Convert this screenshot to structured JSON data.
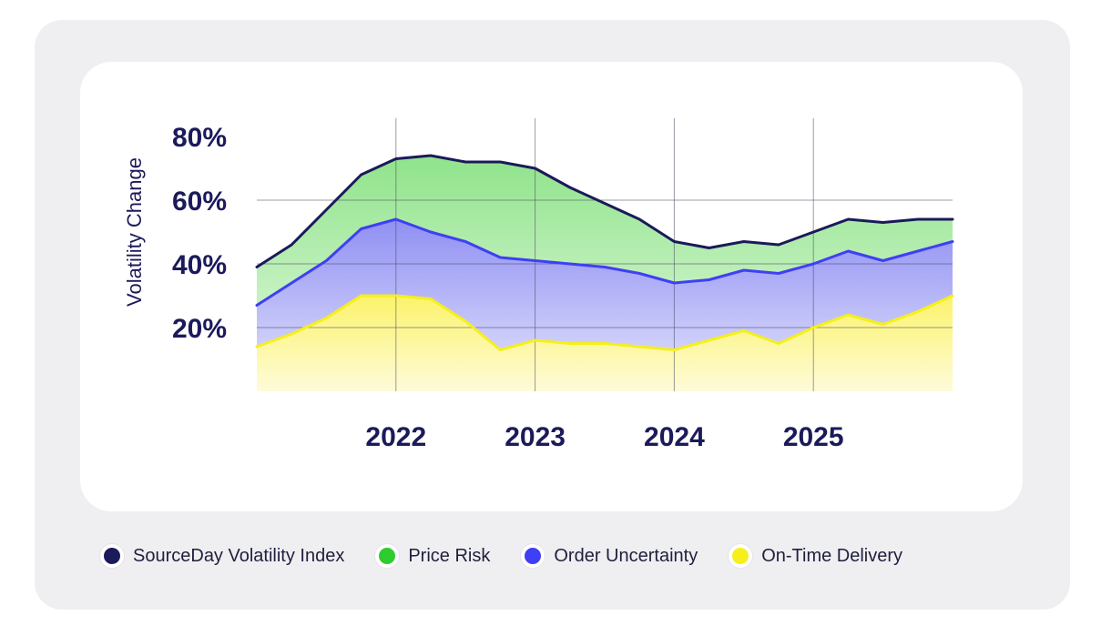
{
  "chart_data": {
    "type": "area",
    "xlabel": "",
    "ylabel": "Volatility Change",
    "ylim": [
      0,
      80
    ],
    "y_ticks": [
      "20%",
      "40%",
      "60%",
      "80%"
    ],
    "y_tick_values": [
      20,
      40,
      60,
      80
    ],
    "x_ticks": [
      "2022",
      "2023",
      "2024",
      "2025"
    ],
    "x_tick_values": [
      2022,
      2023,
      2024,
      2025
    ],
    "xlim": [
      2021.0,
      2026.0
    ],
    "grid": true,
    "legend_position": "bottom",
    "x": [
      2021.0,
      2021.25,
      2021.5,
      2021.75,
      2022.0,
      2022.25,
      2022.5,
      2022.75,
      2023.0,
      2023.25,
      2023.5,
      2023.75,
      2024.0,
      2024.25,
      2024.5,
      2024.75,
      2025.0,
      2025.25,
      2025.5,
      2025.75,
      2026.0
    ],
    "series": [
      {
        "name": "SourceDay Volatility Index",
        "color": "#1b1a5a",
        "values": [
          39,
          46,
          57,
          68,
          73,
          74,
          72,
          72,
          70,
          64,
          59,
          54,
          47,
          45,
          47,
          46,
          50,
          54,
          53,
          54,
          54
        ]
      },
      {
        "name": "Price Risk",
        "color": "#2ecc2e",
        "values": [
          39,
          46,
          57,
          68,
          73,
          74,
          72,
          72,
          70,
          64,
          59,
          54,
          47,
          45,
          47,
          46,
          50,
          54,
          53,
          54,
          54
        ]
      },
      {
        "name": "Order Uncertainty",
        "color": "#3f3ff5",
        "values": [
          27,
          34,
          41,
          51,
          54,
          50,
          47,
          42,
          41,
          40,
          39,
          37,
          34,
          35,
          38,
          37,
          40,
          44,
          41,
          44,
          47
        ]
      },
      {
        "name": "On-Time Delivery",
        "color": "#f6ef1b",
        "values": [
          14,
          18,
          23,
          30,
          30,
          29,
          22,
          13,
          16,
          15,
          15,
          14,
          13,
          16,
          19,
          15,
          20,
          24,
          21,
          25,
          30
        ]
      }
    ]
  },
  "legend": {
    "items": [
      {
        "label": "SourceDay Volatility Index",
        "color": "#1b1a5a"
      },
      {
        "label": "Price Risk",
        "color": "#2ecc2e"
      },
      {
        "label": "Order Uncertainty",
        "color": "#3f3ff5"
      },
      {
        "label": "On-Time Delivery",
        "color": "#f6ef1b"
      }
    ]
  }
}
